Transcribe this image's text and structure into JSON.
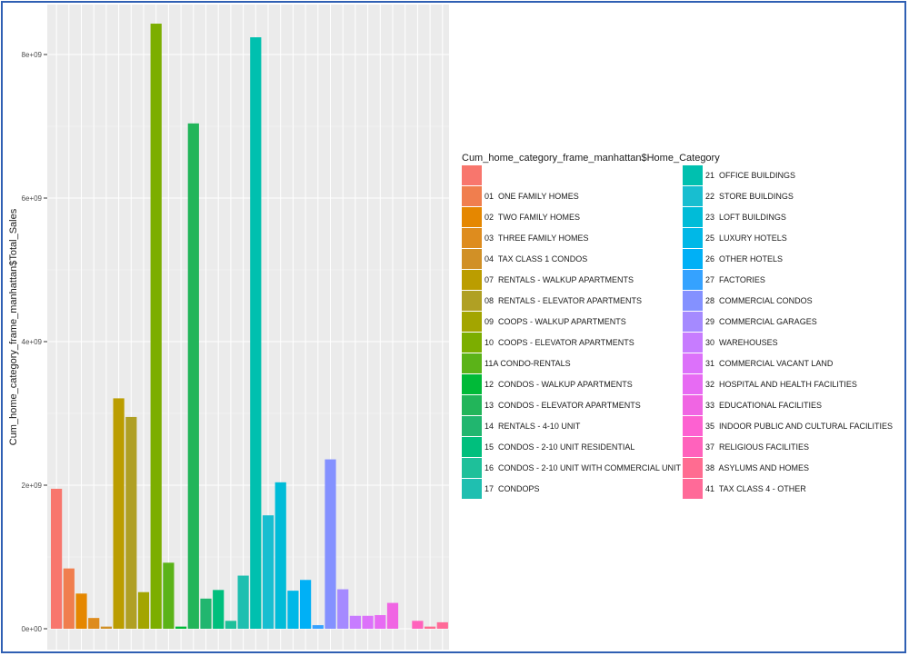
{
  "chart_data": {
    "type": "bar",
    "ylabel": "Cum_home_category_frame_manhattan$Total_Sales",
    "xlabel": "",
    "ylim": [
      0,
      8600000000
    ],
    "yticks": [
      {
        "value": 0,
        "label": "0e+00"
      },
      {
        "value": 2000000000,
        "label": "2e+09"
      },
      {
        "value": 4000000000,
        "label": "4e+09"
      },
      {
        "value": 6000000000,
        "label": "6e+09"
      },
      {
        "value": 8000000000,
        "label": "8e+09"
      }
    ],
    "legend": {
      "title": "Cum_home_category_frame_manhattan$Home_Category",
      "placement": "right"
    },
    "categories": [
      "",
      "01  ONE FAMILY HOMES",
      "02  TWO FAMILY HOMES",
      "03  THREE FAMILY HOMES",
      "04  TAX CLASS 1 CONDOS",
      "07  RENTALS - WALKUP APARTMENTS",
      "08  RENTALS - ELEVATOR APARTMENTS",
      "09  COOPS - WALKUP APARTMENTS",
      "10  COOPS - ELEVATOR APARTMENTS",
      "11A CONDO-RENTALS",
      "12  CONDOS - WALKUP APARTMENTS",
      "13  CONDOS - ELEVATOR APARTMENTS",
      "14  RENTALS - 4-10 UNIT",
      "15  CONDOS - 2-10 UNIT RESIDENTIAL",
      "16  CONDOS - 2-10 UNIT WITH COMMERCIAL UNIT",
      "17  CONDOPS",
      "21  OFFICE BUILDINGS",
      "22  STORE BUILDINGS",
      "23  LOFT BUILDINGS",
      "25  LUXURY HOTELS",
      "26  OTHER HOTELS",
      "27  FACTORIES",
      "28  COMMERCIAL CONDOS",
      "29  COMMERCIAL GARAGES",
      "30  WAREHOUSES",
      "31  COMMERCIAL VACANT LAND",
      "32  HOSPITAL AND HEALTH FACILITIES",
      "33  EDUCATIONAL FACILITIES",
      "35  INDOOR PUBLIC AND CULTURAL FACILITIES",
      "37  RELIGIOUS FACILITIES",
      "38  ASYLUMS AND HOMES",
      "41  TAX CLASS 4 - OTHER"
    ],
    "colors": [
      "#F8766D",
      "#F07E4E",
      "#E58700",
      "#DE8C1E",
      "#D19026",
      "#BB9D00",
      "#B0A024",
      "#A3A500",
      "#7CAE00",
      "#5BB318",
      "#00BA38",
      "#22B55A",
      "#21B66F",
      "#00BF7D",
      "#1EC09A",
      "#1FBFB0",
      "#00C0AF",
      "#18BED0",
      "#00BCD8",
      "#00B8E7",
      "#00B0F6",
      "#35A2FF",
      "#8491FF",
      "#A58AFF",
      "#C77CFF",
      "#DC71FA",
      "#E76BF3",
      "#F065E3",
      "#FD61D1",
      "#FF62BC",
      "#FF6C91",
      "#FF6A98"
    ],
    "bars": [
      {
        "category_index": 0,
        "value": 1950000000
      },
      {
        "category_index": 1,
        "value": 840000000
      },
      {
        "category_index": 2,
        "value": 490000000
      },
      {
        "category_index": 3,
        "value": 150000000
      },
      {
        "category_index": 4,
        "value": 30000000
      },
      {
        "category_index": 5,
        "value": 3210000000
      },
      {
        "category_index": 6,
        "value": 2950000000
      },
      {
        "category_index": 7,
        "value": 510000000
      },
      {
        "category_index": 8,
        "value": 8430000000
      },
      {
        "category_index": 9,
        "value": 920000000
      },
      {
        "category_index": 10,
        "value": 30000000
      },
      {
        "category_index": 11,
        "value": 7040000000
      },
      {
        "category_index": 12,
        "value": 420000000
      },
      {
        "category_index": 13,
        "value": 540000000
      },
      {
        "category_index": 14,
        "value": 110000000
      },
      {
        "category_index": 15,
        "value": 740000000
      },
      {
        "category_index": 16,
        "value": 8240000000
      },
      {
        "category_index": 17,
        "value": 1580000000
      },
      {
        "category_index": 18,
        "value": 2040000000
      },
      {
        "category_index": 19,
        "value": 530000000
      },
      {
        "category_index": 20,
        "value": 680000000
      },
      {
        "category_index": 21,
        "value": 50000000
      },
      {
        "category_index": 22,
        "value": 2360000000
      },
      {
        "category_index": 23,
        "value": 550000000
      },
      {
        "category_index": 24,
        "value": 180000000
      },
      {
        "category_index": 25,
        "value": 180000000
      },
      {
        "category_index": 26,
        "value": 190000000
      },
      {
        "category_index": 27,
        "value": 360000000
      },
      {
        "category_index": 28,
        "value": 0
      },
      {
        "category_index": 29,
        "value": 110000000
      },
      {
        "category_index": 30,
        "value": 30000000
      },
      {
        "category_index": 31,
        "value": 90000000
      }
    ]
  }
}
